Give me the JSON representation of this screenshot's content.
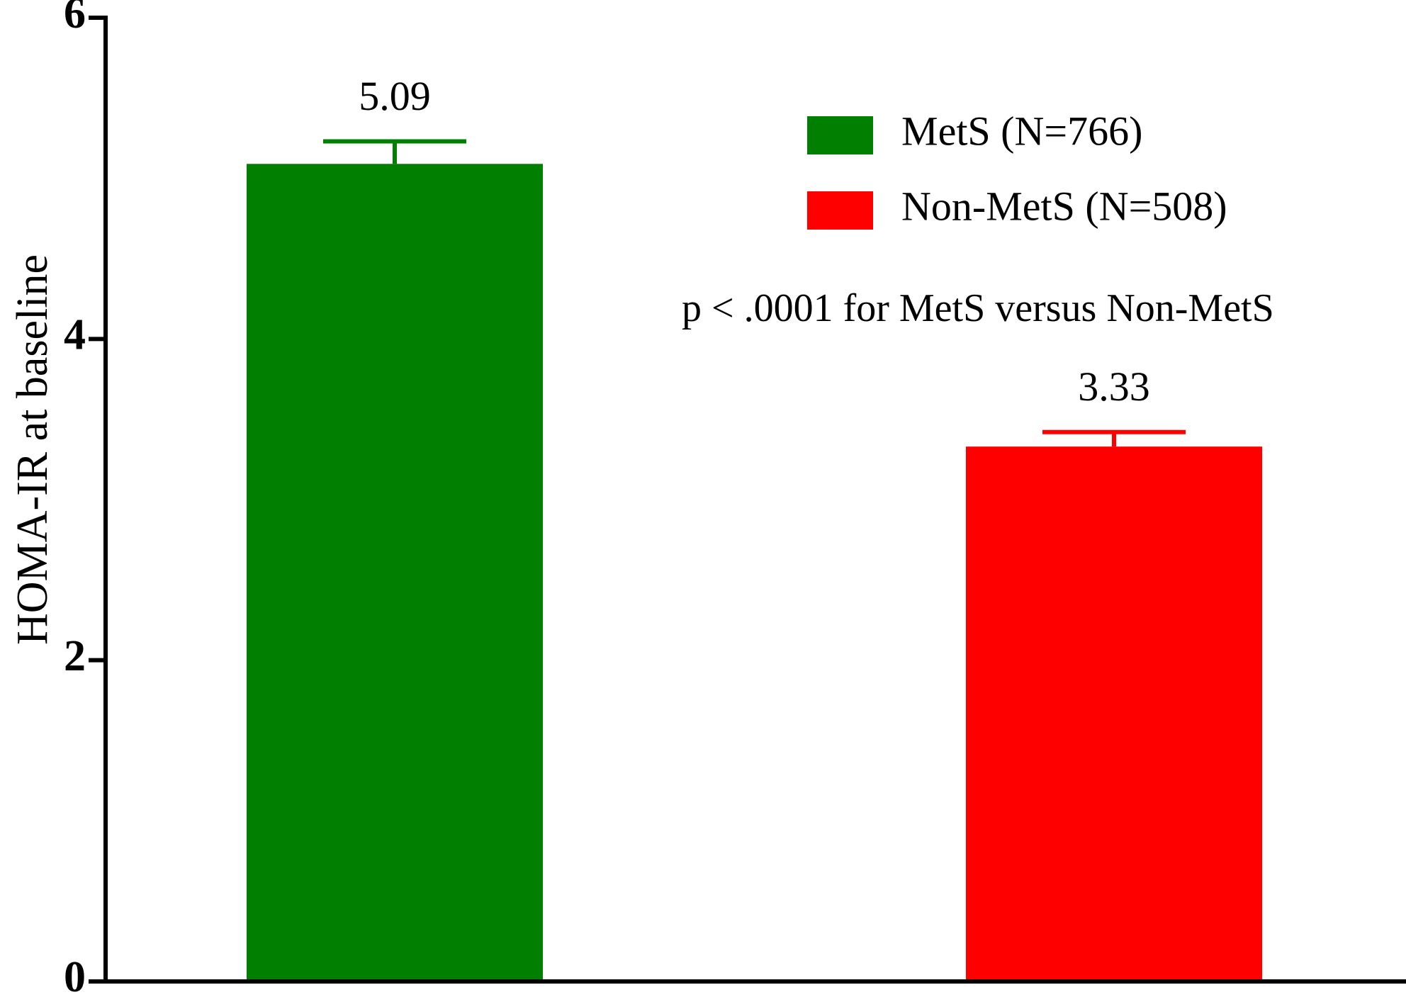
{
  "chart_data": {
    "type": "bar",
    "y_label": "HOMA-IR at baseline",
    "annotation": "p < .0001 for MetS versus Non-MetS",
    "categories": [
      null,
      null
    ],
    "series": [
      {
        "name": "MetS (N=766)",
        "color": "#007f00",
        "values": [
          5.09,
          null
        ],
        "errors": [
          0.14,
          null
        ]
      },
      {
        "name": "Non-MetS (N=508)",
        "color": "#ff0000",
        "values": [
          null,
          3.33
        ],
        "errors": [
          null,
          0.09
        ]
      }
    ],
    "ylim": [
      0,
      6
    ],
    "yticks": [
      0,
      2,
      4,
      6
    ],
    "grid": false
  }
}
